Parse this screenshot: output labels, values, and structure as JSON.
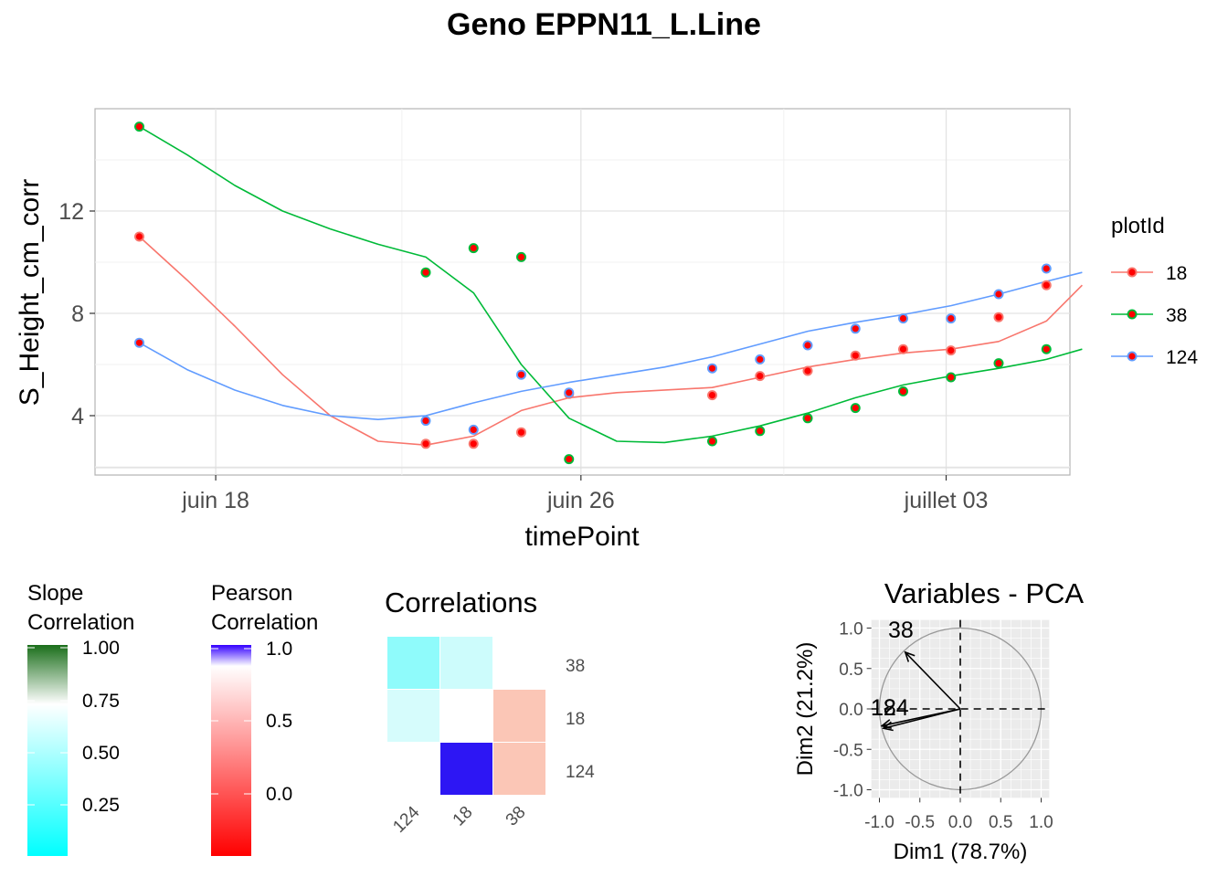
{
  "title": "Geno EPPN11_L.Line",
  "chart_data": [
    {
      "type": "scatter",
      "title": "Geno EPPN11_L.Line",
      "xlabel": "timePoint",
      "ylabel": "S_Height_cm_corr",
      "x_tick_labels": [
        "juin 18",
        "juin 26",
        "juillet 03"
      ],
      "y_ticks": [
        4,
        8,
        12
      ],
      "ylim": [
        1.6,
        16.0
      ],
      "grid": true,
      "legend_title": "plotId",
      "legend_position": "right",
      "series": [
        {
          "name": "18",
          "color": "#F8766D",
          "points": [
            {
              "x": "06-16",
              "y": 11.0
            },
            {
              "x": "06-22",
              "y": 2.9
            },
            {
              "x": "06-23",
              "y": 2.9
            },
            {
              "x": "06-24",
              "y": 3.35
            },
            {
              "x": "06-25",
              "y": 4.85
            },
            {
              "x": "06-28",
              "y": 4.8
            },
            {
              "x": "06-29",
              "y": 5.55
            },
            {
              "x": "06-30",
              "y": 5.75
            },
            {
              "x": "07-01",
              "y": 6.35
            },
            {
              "x": "07-02",
              "y": 6.6
            },
            {
              "x": "07-03",
              "y": 6.55
            },
            {
              "x": "07-04",
              "y": 7.85
            },
            {
              "x": "07-05",
              "y": 9.1
            }
          ]
        },
        {
          "name": "38",
          "color": "#00BA38",
          "points": [
            {
              "x": "06-16",
              "y": 15.3
            },
            {
              "x": "06-22",
              "y": 9.6
            },
            {
              "x": "06-23",
              "y": 10.55
            },
            {
              "x": "06-24",
              "y": 10.2
            },
            {
              "x": "06-25",
              "y": 2.3
            },
            {
              "x": "06-28",
              "y": 3.0
            },
            {
              "x": "06-29",
              "y": 3.4
            },
            {
              "x": "06-30",
              "y": 3.9
            },
            {
              "x": "07-01",
              "y": 4.3
            },
            {
              "x": "07-02",
              "y": 4.95
            },
            {
              "x": "07-03",
              "y": 5.5
            },
            {
              "x": "07-04",
              "y": 6.05
            },
            {
              "x": "07-05",
              "y": 6.6
            }
          ]
        },
        {
          "name": "124",
          "color": "#619CFF",
          "points": [
            {
              "x": "06-16",
              "y": 6.85
            },
            {
              "x": "06-22",
              "y": 3.8
            },
            {
              "x": "06-23",
              "y": 3.45
            },
            {
              "x": "06-24",
              "y": 5.6
            },
            {
              "x": "06-25",
              "y": 4.9
            },
            {
              "x": "06-28",
              "y": 5.85
            },
            {
              "x": "06-29",
              "y": 6.2
            },
            {
              "x": "06-30",
              "y": 6.75
            },
            {
              "x": "07-01",
              "y": 7.4
            },
            {
              "x": "07-02",
              "y": 7.8
            },
            {
              "x": "07-03",
              "y": 7.8
            },
            {
              "x": "07-04",
              "y": 8.75
            },
            {
              "x": "07-05",
              "y": 9.75
            }
          ]
        }
      ],
      "smooth_lines": {
        "18": [
          [
            0,
            11.0
          ],
          [
            1,
            9.3
          ],
          [
            2,
            7.5
          ],
          [
            3,
            5.6
          ],
          [
            4,
            4.0
          ],
          [
            5,
            3.0
          ],
          [
            6,
            2.85
          ],
          [
            7,
            3.2
          ],
          [
            8,
            4.2
          ],
          [
            9,
            4.7
          ],
          [
            10,
            4.9
          ],
          [
            12,
            5.1
          ],
          [
            13,
            5.5
          ],
          [
            14,
            5.9
          ],
          [
            15,
            6.2
          ],
          [
            16,
            6.45
          ],
          [
            17,
            6.6
          ],
          [
            18,
            6.9
          ],
          [
            19,
            7.7
          ],
          [
            19.75,
            9.1
          ]
        ],
        "38": [
          [
            0,
            15.3
          ],
          [
            1,
            14.2
          ],
          [
            2,
            13.0
          ],
          [
            3,
            12.0
          ],
          [
            4,
            11.3
          ],
          [
            5,
            10.7
          ],
          [
            6,
            10.2
          ],
          [
            7,
            8.8
          ],
          [
            8,
            6.0
          ],
          [
            9,
            3.9
          ],
          [
            10,
            3.0
          ],
          [
            11,
            2.95
          ],
          [
            12,
            3.2
          ],
          [
            13,
            3.6
          ],
          [
            14,
            4.1
          ],
          [
            15,
            4.7
          ],
          [
            16,
            5.2
          ],
          [
            17,
            5.55
          ],
          [
            18,
            5.85
          ],
          [
            19,
            6.2
          ],
          [
            19.75,
            6.6
          ]
        ],
        "124": [
          [
            0,
            6.85
          ],
          [
            1,
            5.8
          ],
          [
            2,
            5.0
          ],
          [
            3,
            4.4
          ],
          [
            4,
            4.0
          ],
          [
            5,
            3.85
          ],
          [
            6,
            4.0
          ],
          [
            7,
            4.5
          ],
          [
            8,
            4.95
          ],
          [
            9,
            5.3
          ],
          [
            10,
            5.6
          ],
          [
            11,
            5.9
          ],
          [
            12,
            6.3
          ],
          [
            13,
            6.8
          ],
          [
            14,
            7.3
          ],
          [
            15,
            7.65
          ],
          [
            16,
            7.95
          ],
          [
            17,
            8.3
          ],
          [
            18,
            8.75
          ],
          [
            19,
            9.25
          ],
          [
            19.75,
            9.6
          ]
        ]
      }
    },
    {
      "type": "heatmap",
      "title": "Correlations",
      "rows": [
        "38",
        "18",
        "124"
      ],
      "columns": [
        "124",
        "18",
        "38"
      ],
      "cells": [
        {
          "row": "38",
          "col": "124",
          "kind": "slope",
          "color": "#8ffbfb"
        },
        {
          "row": "38",
          "col": "18",
          "kind": "slope",
          "color": "#cdfcfc"
        },
        {
          "row": "18",
          "col": "124",
          "kind": "slope",
          "color": "#d6fcfc"
        },
        {
          "row": "18",
          "col": "18",
          "kind": "diag",
          "color": "#ffffff"
        },
        {
          "row": "18",
          "col": "38",
          "kind": "pearson",
          "color": "#fbc6b6"
        },
        {
          "row": "124",
          "col": "18",
          "kind": "pearson",
          "color": "#2d16f4"
        },
        {
          "row": "124",
          "col": "38",
          "kind": "pearson",
          "color": "#fbc6b6"
        }
      ],
      "legends": [
        {
          "title_line1": "Slope",
          "title_line2": "Correlation",
          "ticks": [
            "1.00",
            "0.75",
            "0.50",
            "0.25"
          ],
          "colors": [
            "#1a6e1a",
            "#ffffff",
            "#00ffff"
          ]
        },
        {
          "title_line1": "Pearson",
          "title_line2": "Correlation",
          "ticks": [
            "1.0",
            "0.5",
            "0.0"
          ],
          "colors": [
            "#3300ff",
            "#ffffff",
            "#ff0000"
          ]
        }
      ]
    },
    {
      "type": "scatter",
      "title": "Variables - PCA",
      "xlabel": "Dim1 (78.7%)",
      "ylabel": "Dim2 (21.2%)",
      "x_ticks": [
        "-1.0",
        "-0.5",
        "0.0",
        "0.5",
        "1.0"
      ],
      "y_ticks": [
        "1.0",
        "0.5",
        "0.0",
        "-0.5",
        "-1.0"
      ],
      "xlim": [
        -1.1,
        1.1
      ],
      "ylim": [
        -1.1,
        1.1
      ],
      "vectors": [
        {
          "name": "38",
          "x": -0.68,
          "y": 0.7
        },
        {
          "name": "18",
          "x": -0.97,
          "y": -0.21
        },
        {
          "name": "124",
          "x": -0.95,
          "y": -0.24
        }
      ]
    }
  ]
}
